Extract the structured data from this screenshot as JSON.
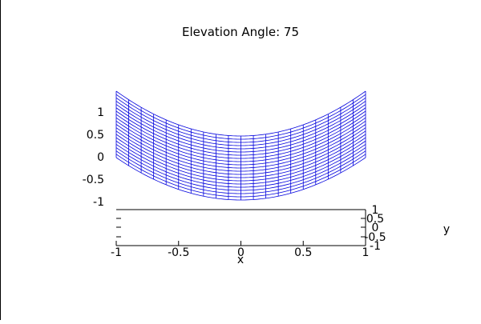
{
  "chart_data": {
    "type": "surface",
    "title": "Elevation Angle: 75",
    "xlabel": "x",
    "ylabel": "y",
    "xlim": [
      -1,
      1
    ],
    "ylim": [
      -1,
      1
    ],
    "zlim": [
      -1,
      1
    ],
    "x_ticks": [
      "-1",
      "-0.5",
      "0",
      "0.5",
      "1"
    ],
    "y_ticks": [
      "1",
      "0.5",
      "0",
      "-0.5",
      "-1"
    ],
    "z_ticks": [
      "1",
      "0.5",
      "0",
      "-0.5",
      "-1"
    ],
    "elevation_angle": 75,
    "surface": {
      "x_min": -1,
      "x_max": 1,
      "x_count": 21,
      "y_min": -1,
      "y_max": 1,
      "y_count": 21,
      "z_min": -1,
      "z_max": 1
    },
    "grid": false,
    "legend": "none",
    "line_color": "#0000dd",
    "axis_color": "#000000"
  }
}
